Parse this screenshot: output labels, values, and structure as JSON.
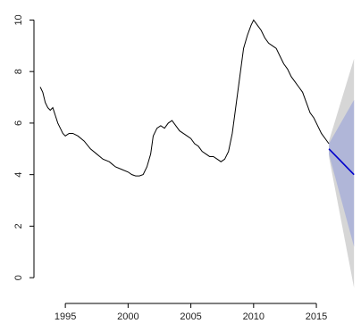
{
  "chart_data": {
    "type": "line",
    "title": "",
    "xlabel": "",
    "ylabel": "",
    "xlim": [
      1992.5,
      2018.2
    ],
    "ylim": [
      -1.0,
      10.5
    ],
    "x_ticks": [
      1995,
      2000,
      2005,
      2010,
      2015
    ],
    "x_tick_labels": [
      "1995",
      "2000",
      "2005",
      "2010",
      "2015"
    ],
    "y_ticks": [
      0,
      2,
      4,
      6,
      8,
      10
    ],
    "y_tick_labels": [
      "0",
      "2",
      "4",
      "6",
      "8",
      "10"
    ],
    "grid": false,
    "legend": "none",
    "colors": {
      "history": "#000000",
      "forecast_mean": "#0000cc",
      "band_80": "#b0b6d8",
      "band_95": "#d6d6d6"
    },
    "series": [
      {
        "kind": "history",
        "x": [
          1993.0,
          1993.2,
          1993.4,
          1993.6,
          1993.8,
          1994.0,
          1994.2,
          1994.4,
          1994.6,
          1994.8,
          1995.0,
          1995.3,
          1995.6,
          1996.0,
          1996.5,
          1997.0,
          1997.5,
          1998.0,
          1998.5,
          1999.0,
          1999.5,
          2000.0,
          2000.3,
          2000.6,
          2000.9,
          2001.2,
          2001.5,
          2001.8,
          2002.0,
          2002.3,
          2002.6,
          2002.9,
          2003.2,
          2003.5,
          2003.8,
          2004.1,
          2004.4,
          2004.7,
          2005.0,
          2005.3,
          2005.6,
          2005.9,
          2006.2,
          2006.5,
          2006.8,
          2007.1,
          2007.4,
          2007.7,
          2008.0,
          2008.3,
          2008.6,
          2008.9,
          2009.2,
          2009.5,
          2009.8,
          2010.0,
          2010.3,
          2010.6,
          2010.9,
          2011.2,
          2011.5,
          2011.8,
          2012.1,
          2012.4,
          2012.7,
          2013.0,
          2013.3,
          2013.6,
          2013.9,
          2014.2,
          2014.5,
          2014.8,
          2015.1,
          2015.4,
          2015.7,
          2016.0
        ],
        "y": [
          7.4,
          7.2,
          6.8,
          6.6,
          6.5,
          6.6,
          6.3,
          6.0,
          5.8,
          5.6,
          5.5,
          5.6,
          5.6,
          5.5,
          5.3,
          5.0,
          4.8,
          4.6,
          4.5,
          4.3,
          4.2,
          4.1,
          4.0,
          3.95,
          3.95,
          4.0,
          4.3,
          4.8,
          5.5,
          5.8,
          5.9,
          5.8,
          6.0,
          6.1,
          5.9,
          5.7,
          5.6,
          5.5,
          5.4,
          5.2,
          5.1,
          4.9,
          4.8,
          4.7,
          4.7,
          4.6,
          4.5,
          4.6,
          4.9,
          5.6,
          6.7,
          7.8,
          8.9,
          9.4,
          9.8,
          10.0,
          9.8,
          9.6,
          9.3,
          9.1,
          9.0,
          8.9,
          8.6,
          8.3,
          8.1,
          7.8,
          7.6,
          7.4,
          7.2,
          6.8,
          6.4,
          6.2,
          5.9,
          5.6,
          5.4,
          5.2
        ]
      },
      {
        "kind": "forecast_mean",
        "x": [
          2016.0,
          2018.0
        ],
        "y": [
          5.0,
          4.0
        ]
      },
      {
        "kind": "band_80",
        "x": [
          2016.0,
          2018.0
        ],
        "lower": [
          4.8,
          1.2
        ],
        "upper": [
          5.2,
          6.9
        ]
      },
      {
        "kind": "band_95",
        "x": [
          2016.0,
          2018.0
        ],
        "lower": [
          4.7,
          -0.4
        ],
        "upper": [
          5.3,
          8.5
        ]
      }
    ]
  }
}
